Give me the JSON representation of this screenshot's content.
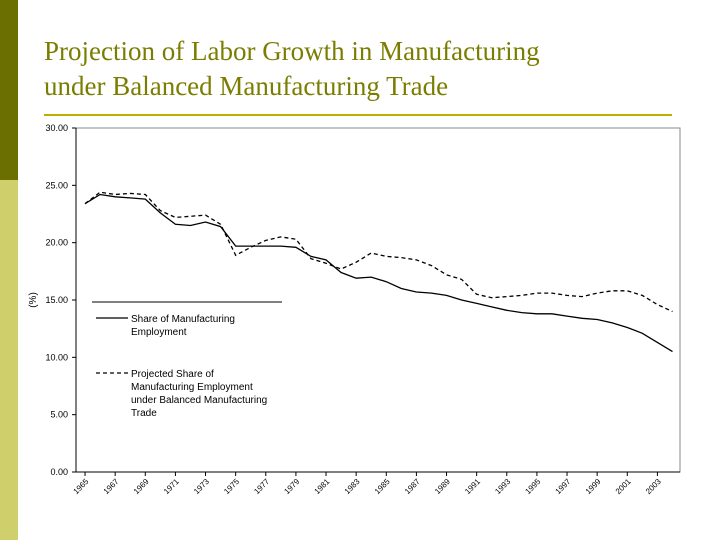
{
  "slide": {
    "title_line1": "Projection of Labor Growth in Manufacturing",
    "title_line2": "under Balanced Manufacturing Trade",
    "colors": {
      "bar_dark": "#6b6e00",
      "bar_light": "#cfcf6c",
      "title": "#7b7d00",
      "rule": "#b8b100"
    }
  },
  "chart_data": {
    "type": "line",
    "ylabel": "(%)",
    "ylim": [
      0,
      30
    ],
    "yticks": [
      "0.00",
      "5.00",
      "10.00",
      "15.00",
      "20.00",
      "25.00",
      "30.00"
    ],
    "ytick_values": [
      0,
      5,
      10,
      15,
      20,
      25,
      30
    ],
    "categories": [
      "1965",
      "1967",
      "1969",
      "1971",
      "1973",
      "1975",
      "1977",
      "1979",
      "1981",
      "1983",
      "1985",
      "1987",
      "1989",
      "1991",
      "1993",
      "1995",
      "1997",
      "1999",
      "2001",
      "2003"
    ],
    "x": [
      1965,
      1966,
      1967,
      1968,
      1969,
      1970,
      1971,
      1972,
      1973,
      1974,
      1975,
      1976,
      1977,
      1978,
      1979,
      1980,
      1981,
      1982,
      1983,
      1984,
      1985,
      1986,
      1987,
      1988,
      1989,
      1990,
      1991,
      1992,
      1993,
      1994,
      1995,
      1996,
      1997,
      1998,
      1999,
      2000,
      2001,
      2002,
      2003,
      2004
    ],
    "grid": false,
    "legend_position": "left",
    "series": [
      {
        "name": "Share of Manufacturing Employment",
        "style": "solid",
        "values": [
          23.4,
          24.2,
          24.0,
          23.9,
          23.8,
          22.6,
          21.6,
          21.5,
          21.8,
          21.4,
          19.7,
          19.7,
          19.7,
          19.7,
          19.6,
          18.8,
          18.5,
          17.4,
          16.9,
          17.0,
          16.6,
          16.0,
          15.7,
          15.6,
          15.4,
          15.0,
          14.7,
          14.4,
          14.1,
          13.9,
          13.8,
          13.8,
          13.6,
          13.4,
          13.3,
          13.0,
          12.6,
          12.1,
          11.3,
          10.5
        ]
      },
      {
        "name": "Projected Share of Manufacturing Employment under Balanced Manufacturing Trade",
        "style": "dashed",
        "values": [
          23.4,
          24.4,
          24.2,
          24.3,
          24.2,
          22.8,
          22.2,
          22.3,
          22.4,
          21.6,
          18.9,
          19.6,
          20.2,
          20.5,
          20.3,
          18.6,
          18.2,
          17.7,
          18.3,
          19.1,
          18.8,
          18.7,
          18.5,
          18.0,
          17.2,
          16.8,
          15.5,
          15.2,
          15.3,
          15.4,
          15.6,
          15.6,
          15.4,
          15.3,
          15.6,
          15.8,
          15.8,
          15.4,
          14.6,
          14.0
        ]
      }
    ]
  }
}
